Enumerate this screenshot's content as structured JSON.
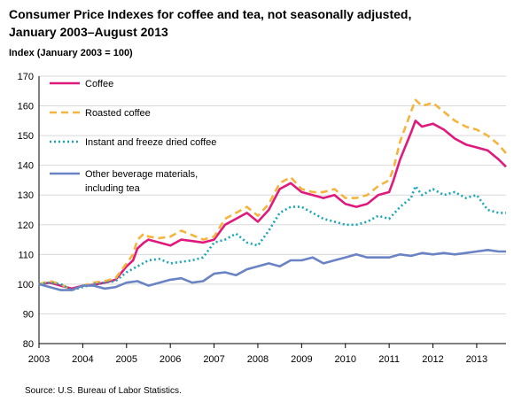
{
  "title_line1": "Consumer Price Indexes for coffee and tea, not seasonally adjusted,",
  "title_line2": "January 2003–August 2013",
  "source": "Source: U.S. Bureau of Labor Statistics.",
  "chart_data": {
    "type": "line",
    "title": "Consumer Price Indexes for coffee and tea, not seasonally adjusted, January 2003–August 2013",
    "xlabel": "",
    "ylabel": "Index (January 2003 = 100)",
    "xlim": [
      2003.0,
      2013.67
    ],
    "ylim": [
      80,
      170
    ],
    "y_ticks": [
      80,
      90,
      100,
      110,
      120,
      130,
      140,
      150,
      160,
      170
    ],
    "x_ticks": [
      2003,
      2004,
      2005,
      2006,
      2007,
      2008,
      2009,
      2010,
      2011,
      2012,
      2013
    ],
    "x_tick_labels": [
      "2003",
      "2004",
      "2005",
      "2006",
      "2007",
      "2008",
      "2009",
      "2010",
      "2011",
      "2012",
      "2013"
    ],
    "grid": "horizontal",
    "legend_position": "top-left",
    "series": [
      {
        "name": "Coffee",
        "color": "#e0197d",
        "dash": "solid",
        "points": [
          [
            2003.0,
            100
          ],
          [
            2003.25,
            100.5
          ],
          [
            2003.5,
            99.5
          ],
          [
            2003.75,
            98.5
          ],
          [
            2004.0,
            99.5
          ],
          [
            2004.25,
            99.8
          ],
          [
            2004.5,
            100.5
          ],
          [
            2004.75,
            101.5
          ],
          [
            2005.0,
            106
          ],
          [
            2005.15,
            108
          ],
          [
            2005.25,
            112
          ],
          [
            2005.4,
            114
          ],
          [
            2005.5,
            115
          ],
          [
            2005.75,
            114
          ],
          [
            2006.0,
            113
          ],
          [
            2006.25,
            115
          ],
          [
            2006.5,
            114.5
          ],
          [
            2006.75,
            114
          ],
          [
            2007.0,
            115
          ],
          [
            2007.25,
            120
          ],
          [
            2007.5,
            122
          ],
          [
            2007.75,
            124
          ],
          [
            2008.0,
            121
          ],
          [
            2008.25,
            125
          ],
          [
            2008.5,
            132
          ],
          [
            2008.75,
            134
          ],
          [
            2009.0,
            131
          ],
          [
            2009.25,
            130
          ],
          [
            2009.5,
            129
          ],
          [
            2009.75,
            130
          ],
          [
            2010.0,
            127
          ],
          [
            2010.25,
            126
          ],
          [
            2010.5,
            127
          ],
          [
            2010.75,
            130
          ],
          [
            2011.0,
            131
          ],
          [
            2011.1,
            135
          ],
          [
            2011.25,
            142
          ],
          [
            2011.5,
            151
          ],
          [
            2011.6,
            155
          ],
          [
            2011.75,
            153
          ],
          [
            2012.0,
            154
          ],
          [
            2012.25,
            152
          ],
          [
            2012.5,
            149
          ],
          [
            2012.75,
            147
          ],
          [
            2013.0,
            146
          ],
          [
            2013.25,
            145
          ],
          [
            2013.5,
            142
          ],
          [
            2013.67,
            139.5
          ]
        ]
      },
      {
        "name": "Roasted coffee",
        "color": "#f4b43d",
        "dash": "dashed",
        "points": [
          [
            2003.0,
            100
          ],
          [
            2003.25,
            101
          ],
          [
            2003.5,
            100
          ],
          [
            2003.75,
            98
          ],
          [
            2004.0,
            99.5
          ],
          [
            2004.25,
            100.5
          ],
          [
            2004.5,
            101
          ],
          [
            2004.75,
            102
          ],
          [
            2005.0,
            107
          ],
          [
            2005.15,
            110
          ],
          [
            2005.25,
            115
          ],
          [
            2005.4,
            117
          ],
          [
            2005.5,
            116
          ],
          [
            2005.75,
            115.5
          ],
          [
            2006.0,
            116
          ],
          [
            2006.25,
            118
          ],
          [
            2006.5,
            116.5
          ],
          [
            2006.75,
            115
          ],
          [
            2007.0,
            116
          ],
          [
            2007.25,
            122
          ],
          [
            2007.5,
            124
          ],
          [
            2007.75,
            126
          ],
          [
            2008.0,
            123
          ],
          [
            2008.25,
            127
          ],
          [
            2008.5,
            134
          ],
          [
            2008.75,
            136
          ],
          [
            2009.0,
            132
          ],
          [
            2009.25,
            131
          ],
          [
            2009.5,
            131
          ],
          [
            2009.75,
            132
          ],
          [
            2010.0,
            129
          ],
          [
            2010.25,
            129
          ],
          [
            2010.5,
            130
          ],
          [
            2010.75,
            133
          ],
          [
            2011.0,
            135
          ],
          [
            2011.1,
            139
          ],
          [
            2011.25,
            148
          ],
          [
            2011.5,
            158
          ],
          [
            2011.6,
            162
          ],
          [
            2011.75,
            160
          ],
          [
            2012.0,
            161
          ],
          [
            2012.25,
            158
          ],
          [
            2012.5,
            155
          ],
          [
            2012.75,
            153
          ],
          [
            2013.0,
            152
          ],
          [
            2013.25,
            150
          ],
          [
            2013.5,
            147
          ],
          [
            2013.67,
            144
          ]
        ]
      },
      {
        "name": "Instant and freeze dried coffee",
        "color": "#1aa6b7",
        "dash": "dotted",
        "points": [
          [
            2003.0,
            100
          ],
          [
            2003.25,
            100.5
          ],
          [
            2003.5,
            100
          ],
          [
            2003.75,
            98
          ],
          [
            2004.0,
            99
          ],
          [
            2004.25,
            100
          ],
          [
            2004.5,
            100.5
          ],
          [
            2004.75,
            101
          ],
          [
            2005.0,
            104
          ],
          [
            2005.25,
            106
          ],
          [
            2005.5,
            108
          ],
          [
            2005.75,
            108.5
          ],
          [
            2006.0,
            107
          ],
          [
            2006.25,
            107.5
          ],
          [
            2006.5,
            108
          ],
          [
            2006.75,
            109
          ],
          [
            2007.0,
            114
          ],
          [
            2007.25,
            115
          ],
          [
            2007.5,
            117
          ],
          [
            2007.75,
            114
          ],
          [
            2008.0,
            113
          ],
          [
            2008.25,
            118
          ],
          [
            2008.5,
            124
          ],
          [
            2008.75,
            126
          ],
          [
            2009.0,
            126
          ],
          [
            2009.25,
            124
          ],
          [
            2009.5,
            122
          ],
          [
            2009.75,
            121
          ],
          [
            2010.0,
            120
          ],
          [
            2010.25,
            120
          ],
          [
            2010.5,
            121
          ],
          [
            2010.75,
            123
          ],
          [
            2011.0,
            122
          ],
          [
            2011.25,
            126
          ],
          [
            2011.5,
            129
          ],
          [
            2011.6,
            133
          ],
          [
            2011.75,
            130
          ],
          [
            2012.0,
            132
          ],
          [
            2012.25,
            130
          ],
          [
            2012.5,
            131
          ],
          [
            2012.75,
            129
          ],
          [
            2013.0,
            130
          ],
          [
            2013.25,
            125
          ],
          [
            2013.5,
            124
          ],
          [
            2013.67,
            124
          ]
        ]
      },
      {
        "name": "Other beverage materials, including tea",
        "color": "#6a83c4",
        "dash": "solid",
        "points": [
          [
            2003.0,
            100
          ],
          [
            2003.25,
            99
          ],
          [
            2003.5,
            98
          ],
          [
            2003.75,
            98
          ],
          [
            2004.0,
            99.5
          ],
          [
            2004.25,
            99.5
          ],
          [
            2004.5,
            98.5
          ],
          [
            2004.75,
            99
          ],
          [
            2005.0,
            100.5
          ],
          [
            2005.25,
            101
          ],
          [
            2005.5,
            99.5
          ],
          [
            2005.75,
            100.5
          ],
          [
            2006.0,
            101.5
          ],
          [
            2006.25,
            102
          ],
          [
            2006.5,
            100.5
          ],
          [
            2006.75,
            101
          ],
          [
            2007.0,
            103.5
          ],
          [
            2007.25,
            104
          ],
          [
            2007.5,
            103
          ],
          [
            2007.75,
            105
          ],
          [
            2008.0,
            106
          ],
          [
            2008.25,
            107
          ],
          [
            2008.5,
            106
          ],
          [
            2008.75,
            108
          ],
          [
            2009.0,
            108
          ],
          [
            2009.25,
            109
          ],
          [
            2009.5,
            107
          ],
          [
            2009.75,
            108
          ],
          [
            2010.0,
            109
          ],
          [
            2010.25,
            110
          ],
          [
            2010.5,
            109
          ],
          [
            2010.75,
            109
          ],
          [
            2011.0,
            109
          ],
          [
            2011.25,
            110
          ],
          [
            2011.5,
            109.5
          ],
          [
            2011.75,
            110.5
          ],
          [
            2012.0,
            110
          ],
          [
            2012.25,
            110.5
          ],
          [
            2012.5,
            110
          ],
          [
            2012.75,
            110.5
          ],
          [
            2013.0,
            111
          ],
          [
            2013.25,
            111.5
          ],
          [
            2013.5,
            111
          ],
          [
            2013.67,
            111
          ]
        ]
      }
    ]
  }
}
